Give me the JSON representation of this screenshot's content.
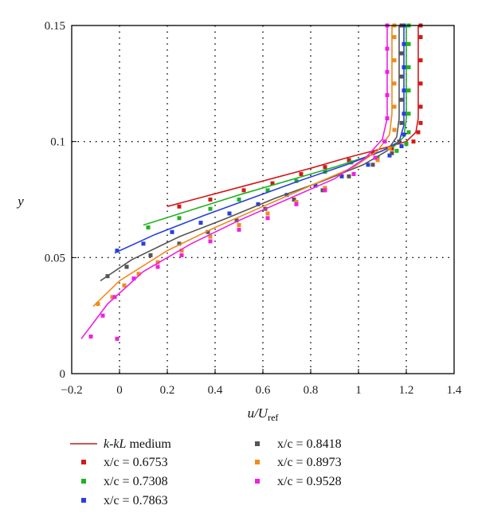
{
  "chart_data": {
    "type": "scatter",
    "xlabel_main": "u/U",
    "xlabel_sub": "ref",
    "ylabel": "y",
    "xlim": [
      -0.2,
      1.4
    ],
    "ylim": [
      0,
      0.15
    ],
    "x_ticks": [
      "−0.2",
      "0",
      "0.2",
      "0.4",
      "0.6",
      "0.8",
      "1",
      "1.2",
      "1.4"
    ],
    "x_tick_values": [
      -0.2,
      0,
      0.2,
      0.4,
      0.6,
      0.8,
      1.0,
      1.2,
      1.4
    ],
    "y_ticks": [
      "0",
      "0.05",
      "0.1",
      "0.15"
    ],
    "y_tick_values": [
      0,
      0.05,
      0.1,
      0.15
    ],
    "grid": "dotted",
    "legend": [
      {
        "label_main": "k-kL",
        "label_rest": " medium",
        "kind": "line",
        "color": "#b22222"
      },
      {
        "label": "x/c = 0.6753",
        "kind": "marker",
        "color": "#d11a1a"
      },
      {
        "label": "x/c = 0.7308",
        "kind": "marker",
        "color": "#22b222"
      },
      {
        "label": "x/c = 0.7863",
        "kind": "marker",
        "color": "#2a3fdc"
      },
      {
        "label": "x/c = 0.8418",
        "kind": "marker",
        "color": "#555555"
      },
      {
        "label": "x/c = 0.8973",
        "kind": "marker",
        "color": "#f08a1c"
      },
      {
        "label": "x/c = 0.9528",
        "kind": "marker",
        "color": "#f020e0"
      }
    ],
    "series": [
      {
        "name": "x/c = 0.6753",
        "color": "#d11a1a",
        "curve": [
          [
            0.2,
            0.072
          ],
          [
            0.4,
            0.0775
          ],
          [
            0.6,
            0.083
          ],
          [
            0.8,
            0.0885
          ],
          [
            0.95,
            0.093
          ],
          [
            1.1,
            0.097
          ],
          [
            1.2,
            0.1
          ],
          [
            1.24,
            0.104
          ],
          [
            1.25,
            0.11
          ],
          [
            1.25,
            0.15
          ]
        ],
        "points": [
          [
            0.25,
            0.072
          ],
          [
            0.38,
            0.075
          ],
          [
            0.52,
            0.079
          ],
          [
            0.64,
            0.082
          ],
          [
            0.76,
            0.086
          ],
          [
            0.86,
            0.089
          ],
          [
            0.96,
            0.092
          ],
          [
            1.06,
            0.095
          ],
          [
            1.14,
            0.097
          ],
          [
            1.2,
            0.099
          ],
          [
            1.23,
            0.1
          ],
          [
            1.25,
            0.104
          ],
          [
            1.26,
            0.108
          ],
          [
            1.26,
            0.115
          ],
          [
            1.26,
            0.125
          ],
          [
            1.26,
            0.135
          ],
          [
            1.26,
            0.145
          ],
          [
            1.26,
            0.15
          ]
        ]
      },
      {
        "name": "x/c = 0.7308",
        "color": "#22b222",
        "curve": [
          [
            0.1,
            0.064
          ],
          [
            0.3,
            0.0705
          ],
          [
            0.5,
            0.077
          ],
          [
            0.7,
            0.083
          ],
          [
            0.9,
            0.089
          ],
          [
            1.05,
            0.094
          ],
          [
            1.15,
            0.098
          ],
          [
            1.19,
            0.102
          ],
          [
            1.2,
            0.11
          ],
          [
            1.2,
            0.15
          ]
        ],
        "points": [
          [
            0.12,
            0.063
          ],
          [
            0.25,
            0.067
          ],
          [
            0.38,
            0.071
          ],
          [
            0.5,
            0.075
          ],
          [
            0.62,
            0.079
          ],
          [
            0.74,
            0.083
          ],
          [
            0.86,
            0.087
          ],
          [
            0.97,
            0.091
          ],
          [
            1.08,
            0.093
          ],
          [
            1.16,
            0.096
          ],
          [
            1.2,
            0.099
          ],
          [
            1.21,
            0.104
          ],
          [
            1.21,
            0.112
          ],
          [
            1.21,
            0.122
          ],
          [
            1.21,
            0.132
          ],
          [
            1.21,
            0.142
          ],
          [
            1.21,
            0.15
          ]
        ]
      },
      {
        "name": "x/c = 0.7863",
        "color": "#2a3fdc",
        "curve": [
          [
            -0.02,
            0.052
          ],
          [
            0.15,
            0.06
          ],
          [
            0.35,
            0.068
          ],
          [
            0.55,
            0.0755
          ],
          [
            0.75,
            0.083
          ],
          [
            0.95,
            0.09
          ],
          [
            1.1,
            0.096
          ],
          [
            1.17,
            0.1
          ],
          [
            1.19,
            0.107
          ],
          [
            1.19,
            0.15
          ]
        ],
        "points": [
          [
            -0.01,
            0.053
          ],
          [
            0.1,
            0.056
          ],
          [
            0.22,
            0.061
          ],
          [
            0.34,
            0.065
          ],
          [
            0.46,
            0.069
          ],
          [
            0.58,
            0.073
          ],
          [
            0.7,
            0.077
          ],
          [
            0.82,
            0.081
          ],
          [
            0.93,
            0.085
          ],
          [
            1.04,
            0.09
          ],
          [
            1.13,
            0.094
          ],
          [
            1.18,
            0.098
          ],
          [
            1.19,
            0.103
          ],
          [
            1.19,
            0.112
          ],
          [
            1.19,
            0.122
          ],
          [
            1.19,
            0.132
          ],
          [
            1.19,
            0.142
          ],
          [
            1.19,
            0.15
          ]
        ]
      },
      {
        "name": "x/c = 0.8418",
        "color": "#555555",
        "curve": [
          [
            -0.08,
            0.04
          ],
          [
            0.05,
            0.049
          ],
          [
            0.25,
            0.059
          ],
          [
            0.45,
            0.067
          ],
          [
            0.65,
            0.0755
          ],
          [
            0.85,
            0.083
          ],
          [
            1.02,
            0.09
          ],
          [
            1.12,
            0.096
          ],
          [
            1.16,
            0.102
          ],
          [
            1.17,
            0.11
          ],
          [
            1.17,
            0.15
          ]
        ],
        "points": [
          [
            -0.05,
            0.042
          ],
          [
            0.03,
            0.046
          ],
          [
            0.13,
            0.051
          ],
          [
            0.25,
            0.056
          ],
          [
            0.37,
            0.061
          ],
          [
            0.49,
            0.066
          ],
          [
            0.61,
            0.071
          ],
          [
            0.73,
            0.075
          ],
          [
            0.85,
            0.079
          ],
          [
            0.96,
            0.085
          ],
          [
            1.06,
            0.09
          ],
          [
            1.14,
            0.095
          ],
          [
            1.17,
            0.1
          ],
          [
            1.18,
            0.108
          ],
          [
            1.18,
            0.118
          ],
          [
            1.18,
            0.128
          ],
          [
            1.18,
            0.138
          ],
          [
            1.18,
            0.15
          ]
        ]
      },
      {
        "name": "x/c = 0.8973",
        "color": "#f08a1c",
        "curve": [
          [
            -0.11,
            0.029
          ],
          [
            0.0,
            0.04
          ],
          [
            0.2,
            0.053
          ],
          [
            0.4,
            0.063
          ],
          [
            0.6,
            0.072
          ],
          [
            0.8,
            0.081
          ],
          [
            0.98,
            0.089
          ],
          [
            1.08,
            0.096
          ],
          [
            1.13,
            0.103
          ],
          [
            1.14,
            0.112
          ],
          [
            1.14,
            0.15
          ]
        ],
        "points": [
          [
            -0.09,
            0.03
          ],
          [
            -0.03,
            0.033
          ],
          [
            0.02,
            0.038
          ],
          [
            0.08,
            0.043
          ],
          [
            0.16,
            0.048
          ],
          [
            0.26,
            0.053
          ],
          [
            0.38,
            0.059
          ],
          [
            0.5,
            0.064
          ],
          [
            0.62,
            0.069
          ],
          [
            0.74,
            0.074
          ],
          [
            0.86,
            0.08
          ],
          [
            0.98,
            0.086
          ],
          [
            1.08,
            0.092
          ],
          [
            1.13,
            0.097
          ],
          [
            1.15,
            0.105
          ],
          [
            1.15,
            0.115
          ],
          [
            1.15,
            0.125
          ],
          [
            1.15,
            0.135
          ],
          [
            1.15,
            0.145
          ],
          [
            1.15,
            0.15
          ]
        ]
      },
      {
        "name": "x/c = 0.9528",
        "color": "#f020e0",
        "curve": [
          [
            -0.16,
            0.015
          ],
          [
            -0.05,
            0.03
          ],
          [
            0.1,
            0.044
          ],
          [
            0.3,
            0.056
          ],
          [
            0.5,
            0.066
          ],
          [
            0.7,
            0.075
          ],
          [
            0.9,
            0.084
          ],
          [
            1.03,
            0.093
          ],
          [
            1.1,
            0.101
          ],
          [
            1.12,
            0.11
          ],
          [
            1.12,
            0.15
          ]
        ],
        "points": [
          [
            -0.12,
            0.016
          ],
          [
            -0.01,
            0.015
          ],
          [
            -0.07,
            0.025
          ],
          [
            -0.02,
            0.033
          ],
          [
            0.06,
            0.041
          ],
          [
            0.16,
            0.046
          ],
          [
            0.26,
            0.051
          ],
          [
            0.38,
            0.057
          ],
          [
            0.5,
            0.062
          ],
          [
            0.62,
            0.067
          ],
          [
            0.74,
            0.073
          ],
          [
            0.86,
            0.079
          ],
          [
            0.98,
            0.086
          ],
          [
            1.07,
            0.093
          ],
          [
            1.11,
            0.1
          ],
          [
            1.12,
            0.11
          ],
          [
            1.12,
            0.12
          ],
          [
            1.12,
            0.13
          ],
          [
            1.12,
            0.14
          ],
          [
            1.12,
            0.15
          ]
        ]
      }
    ]
  }
}
